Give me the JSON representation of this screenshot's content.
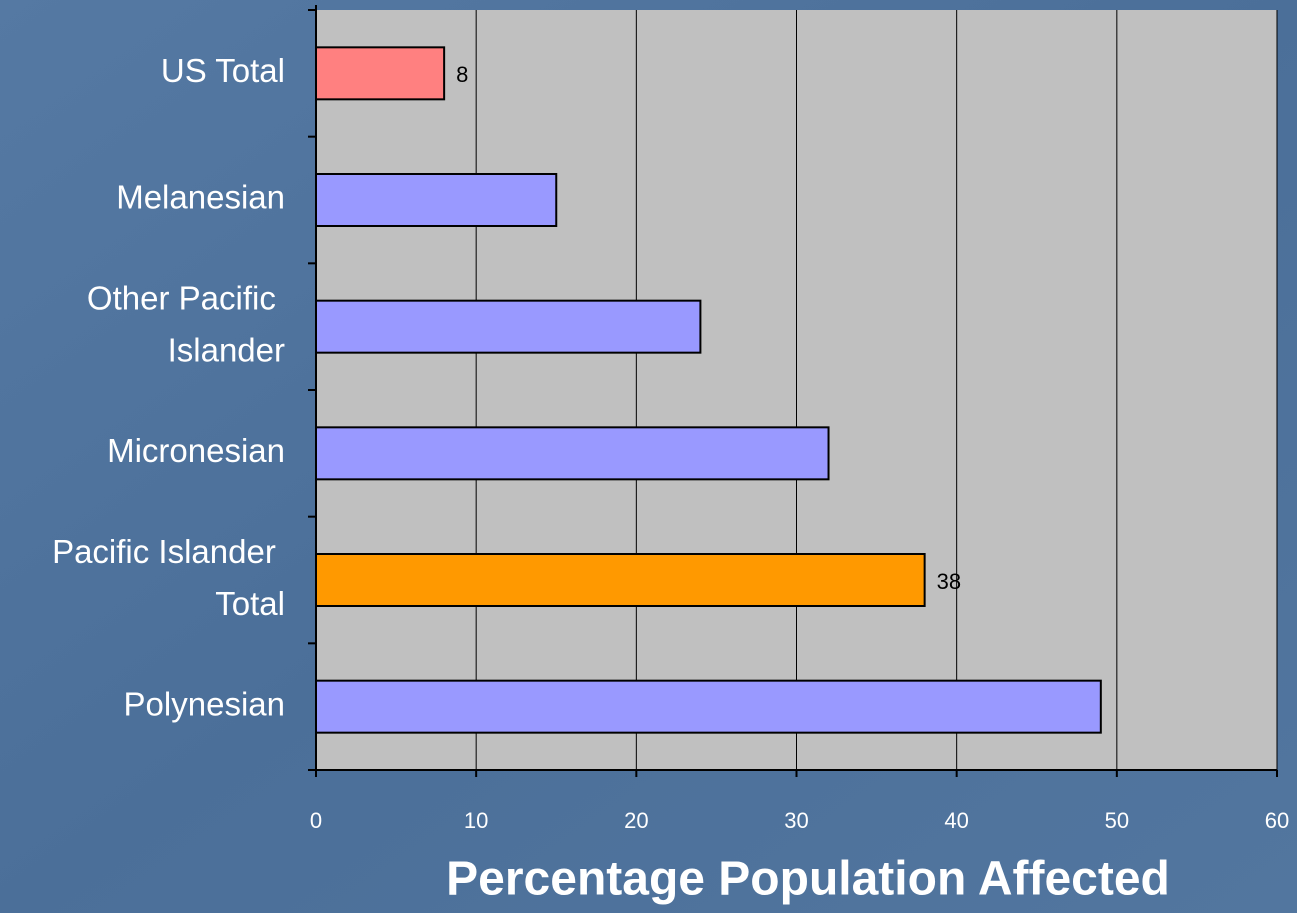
{
  "chart_data": {
    "type": "bar",
    "orientation": "horizontal",
    "categories": [
      "US Total",
      "Melanesian",
      "Other Pacific Islander",
      "Micronesian",
      "Pacific Islander Total",
      "Polynesian"
    ],
    "values": [
      8,
      15,
      24,
      32,
      38,
      49
    ],
    "value_labels": [
      "8",
      null,
      null,
      null,
      "38",
      null
    ],
    "colors": [
      "#ff8080",
      "#9999ff",
      "#9999ff",
      "#9999ff",
      "#ff9900",
      "#9999ff"
    ],
    "xlabel": "Percentage Population Affected",
    "xlim": [
      0,
      60
    ],
    "xticks": [
      0,
      10,
      20,
      30,
      40,
      50,
      60
    ],
    "grid": true
  }
}
